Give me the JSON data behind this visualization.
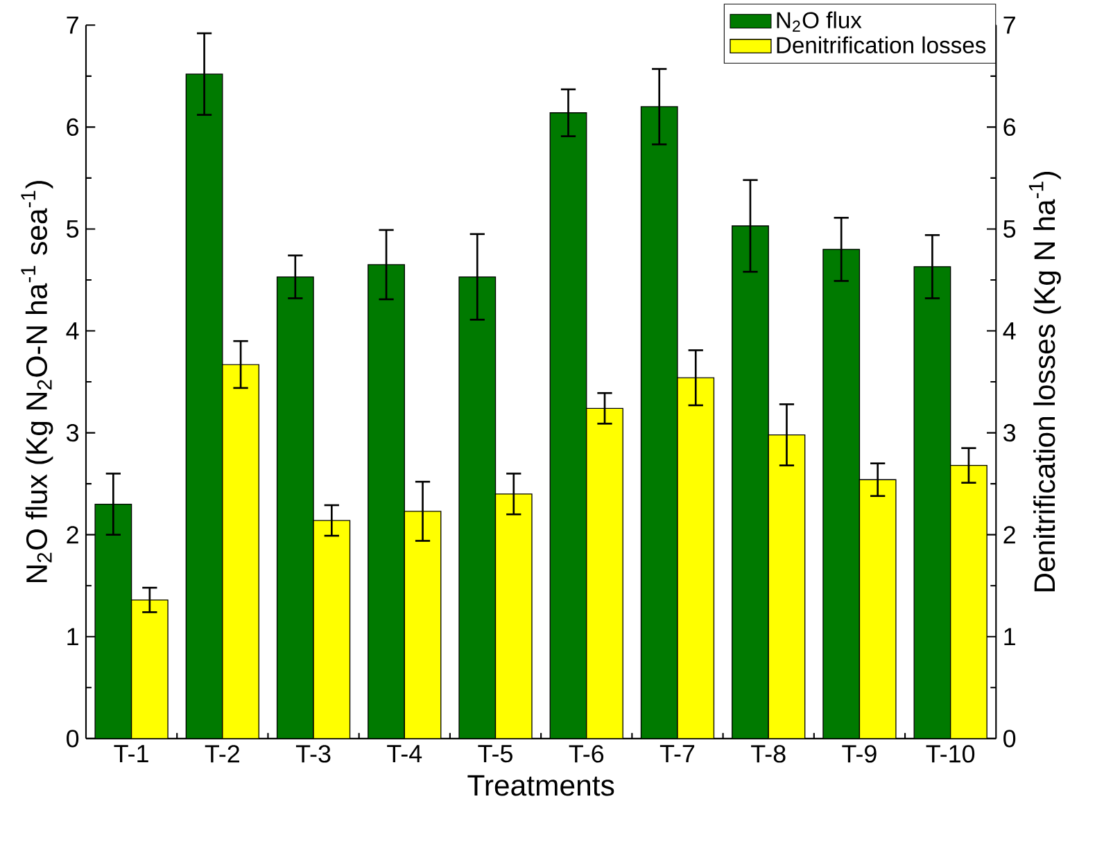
{
  "chart_data": {
    "type": "bar",
    "xlabel": "Treatments",
    "ylabel": "N$_{2}$O flux (Kg N$_{2}$O-N ha$^{-1}$ sea$^{-1}$)",
    "y2label": "Denitrification losses (Kg N ha$^{-1}$)",
    "categories": [
      "T-1",
      "T-2",
      "T-3",
      "T-4",
      "T-5",
      "T-6",
      "T-7",
      "T-8",
      "T-9",
      "T-10"
    ],
    "series": [
      {
        "name": "N$_{2}$O flux",
        "color": "#007a00",
        "values": [
          2.3,
          6.52,
          4.53,
          4.65,
          4.53,
          6.14,
          6.2,
          5.03,
          4.8,
          4.63
        ],
        "errors": [
          0.3,
          0.4,
          0.21,
          0.34,
          0.42,
          0.23,
          0.37,
          0.45,
          0.31,
          0.31
        ]
      },
      {
        "name": "Denitrification losses",
        "color": "#ffff00",
        "axis": "y2",
        "values": [
          1.36,
          3.67,
          2.14,
          2.23,
          2.4,
          3.24,
          3.54,
          2.98,
          2.54,
          2.68
        ],
        "errors": [
          0.12,
          0.23,
          0.15,
          0.29,
          0.2,
          0.15,
          0.27,
          0.3,
          0.16,
          0.17
        ]
      }
    ],
    "ylim": [
      0,
      7
    ],
    "yticks": [
      0,
      1,
      2,
      3,
      4,
      5,
      6,
      7
    ],
    "y2lim": [
      0,
      7
    ],
    "y2ticks": [
      0,
      1,
      2,
      3,
      4,
      5,
      6,
      7
    ],
    "legend": "top right",
    "grid": false
  }
}
